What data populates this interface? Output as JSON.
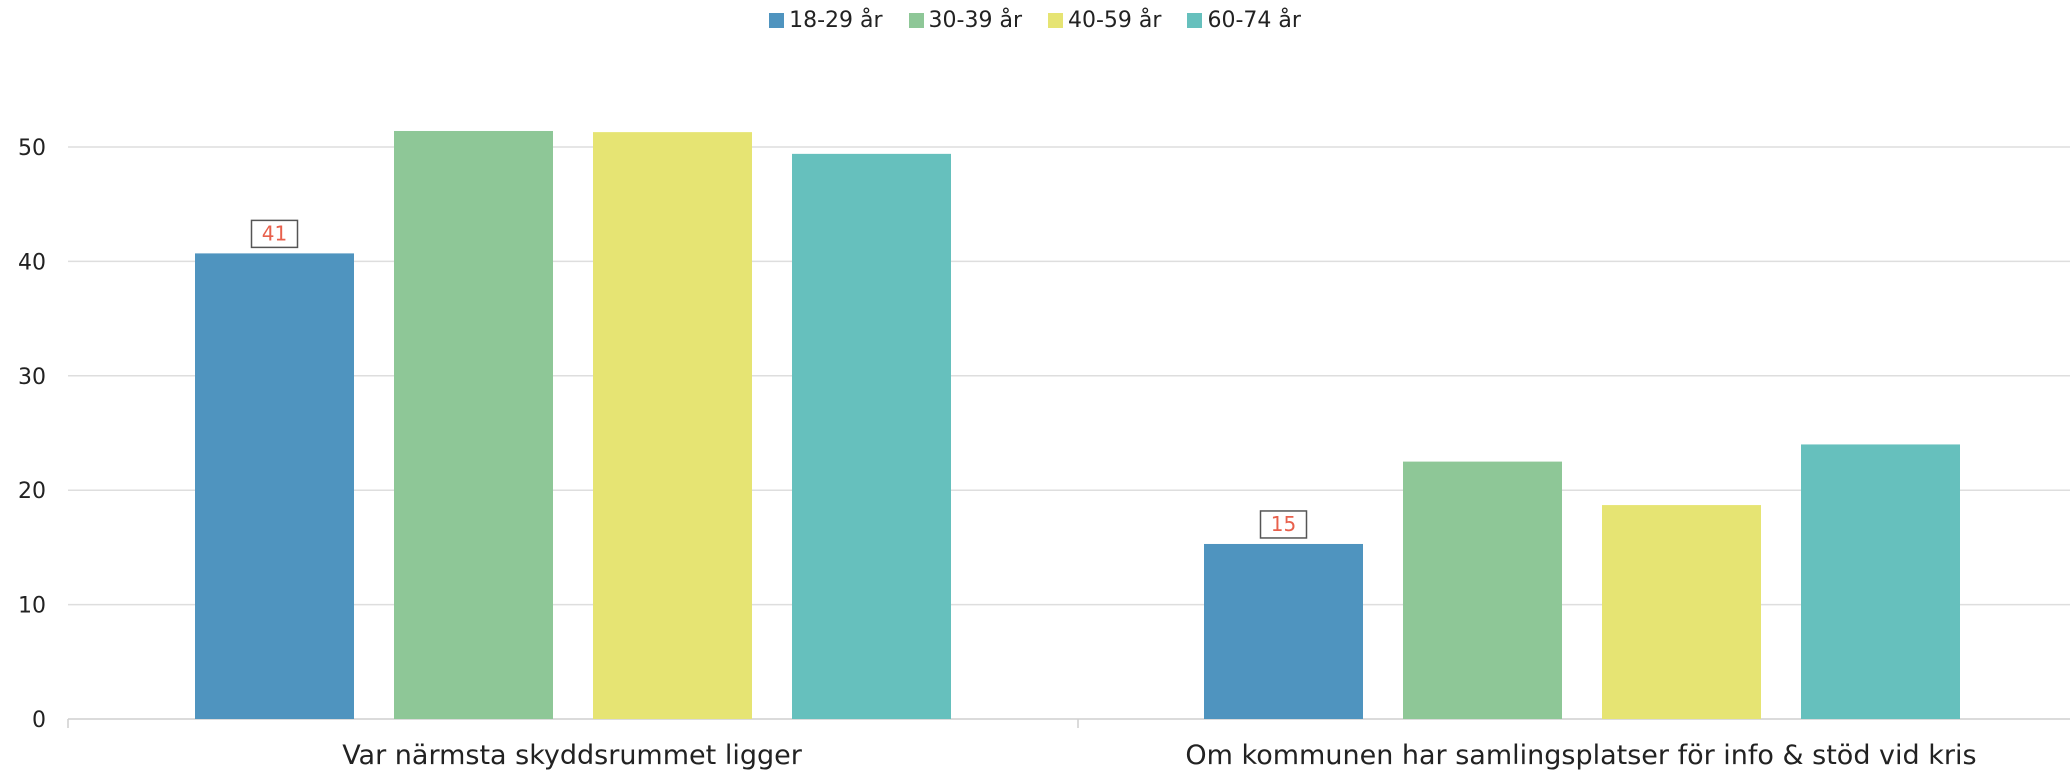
{
  "chart_data": {
    "type": "bar",
    "categories": [
      "Var närmsta skyddsrummet ligger",
      "Om kommunen har samlingsplatser för info & stöd vid kris"
    ],
    "series": [
      {
        "name": "18-29 år",
        "color": "#4f94bf",
        "values": [
          40.7,
          15.3
        ]
      },
      {
        "name": "30-39 år",
        "color": "#8ec797",
        "values": [
          51.4,
          22.5
        ]
      },
      {
        "name": "40-59 år",
        "color": "#e6e473",
        "values": [
          51.3,
          18.7
        ]
      },
      {
        "name": "60-74 år",
        "color": "#66c0bd",
        "values": [
          49.4,
          24.0
        ]
      }
    ],
    "data_labels": [
      {
        "series": 0,
        "category": 0,
        "text": "41"
      },
      {
        "series": 0,
        "category": 1,
        "text": "15"
      }
    ],
    "yticks": [
      0,
      10,
      20,
      30,
      40,
      50
    ],
    "ylim": [
      0,
      50
    ],
    "grid": true,
    "legend_position": "top-center",
    "title": "",
    "xlabel": "",
    "ylabel": ""
  }
}
